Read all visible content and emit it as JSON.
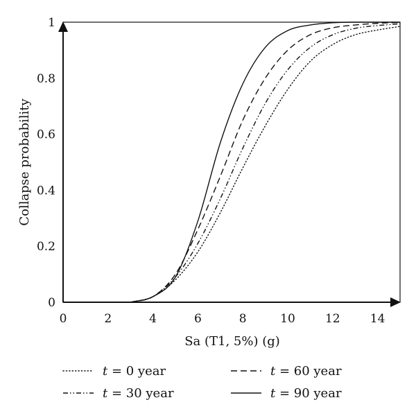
{
  "chart_data": {
    "type": "line",
    "title": "",
    "xlabel": "Sa (T1, 5%) (g)",
    "ylabel": "Collapse probability",
    "xlim": [
      0,
      15
    ],
    "ylim": [
      0,
      1
    ],
    "xticks": [
      0,
      2,
      4,
      6,
      8,
      10,
      12,
      14
    ],
    "yticks": [
      0,
      0.2,
      0.4,
      0.6,
      0.8,
      1
    ],
    "ytick_labels": [
      "0",
      "0.2",
      "0.4",
      "0.6",
      "0.8",
      "1"
    ],
    "grid": false,
    "legend_placement": "bottom",
    "x": [
      3,
      4,
      5,
      6,
      7,
      8,
      9,
      10,
      11,
      12,
      13,
      14,
      15
    ],
    "series": [
      {
        "var": "t",
        "rest": " = 0 year",
        "style": "dotted",
        "values": [
          0,
          0.02,
          0.08,
          0.18,
          0.32,
          0.48,
          0.63,
          0.76,
          0.86,
          0.92,
          0.955,
          0.972,
          0.985
        ]
      },
      {
        "var": "t",
        "rest": " = 30 year",
        "style": "dashdotdot",
        "values": [
          0,
          0.02,
          0.09,
          0.21,
          0.37,
          0.55,
          0.71,
          0.83,
          0.91,
          0.955,
          0.978,
          0.988,
          0.994
        ]
      },
      {
        "var": "t",
        "rest": " = 60 year",
        "style": "dashed",
        "values": [
          0,
          0.02,
          0.1,
          0.26,
          0.45,
          0.65,
          0.8,
          0.9,
          0.955,
          0.98,
          0.99,
          0.996,
          0.999
        ]
      },
      {
        "var": "t",
        "rest": " = 90 year",
        "style": "solid",
        "values": [
          0,
          0.02,
          0.09,
          0.29,
          0.57,
          0.78,
          0.91,
          0.97,
          0.99,
          0.998,
          1.0,
          1.0,
          1.0
        ]
      }
    ]
  }
}
